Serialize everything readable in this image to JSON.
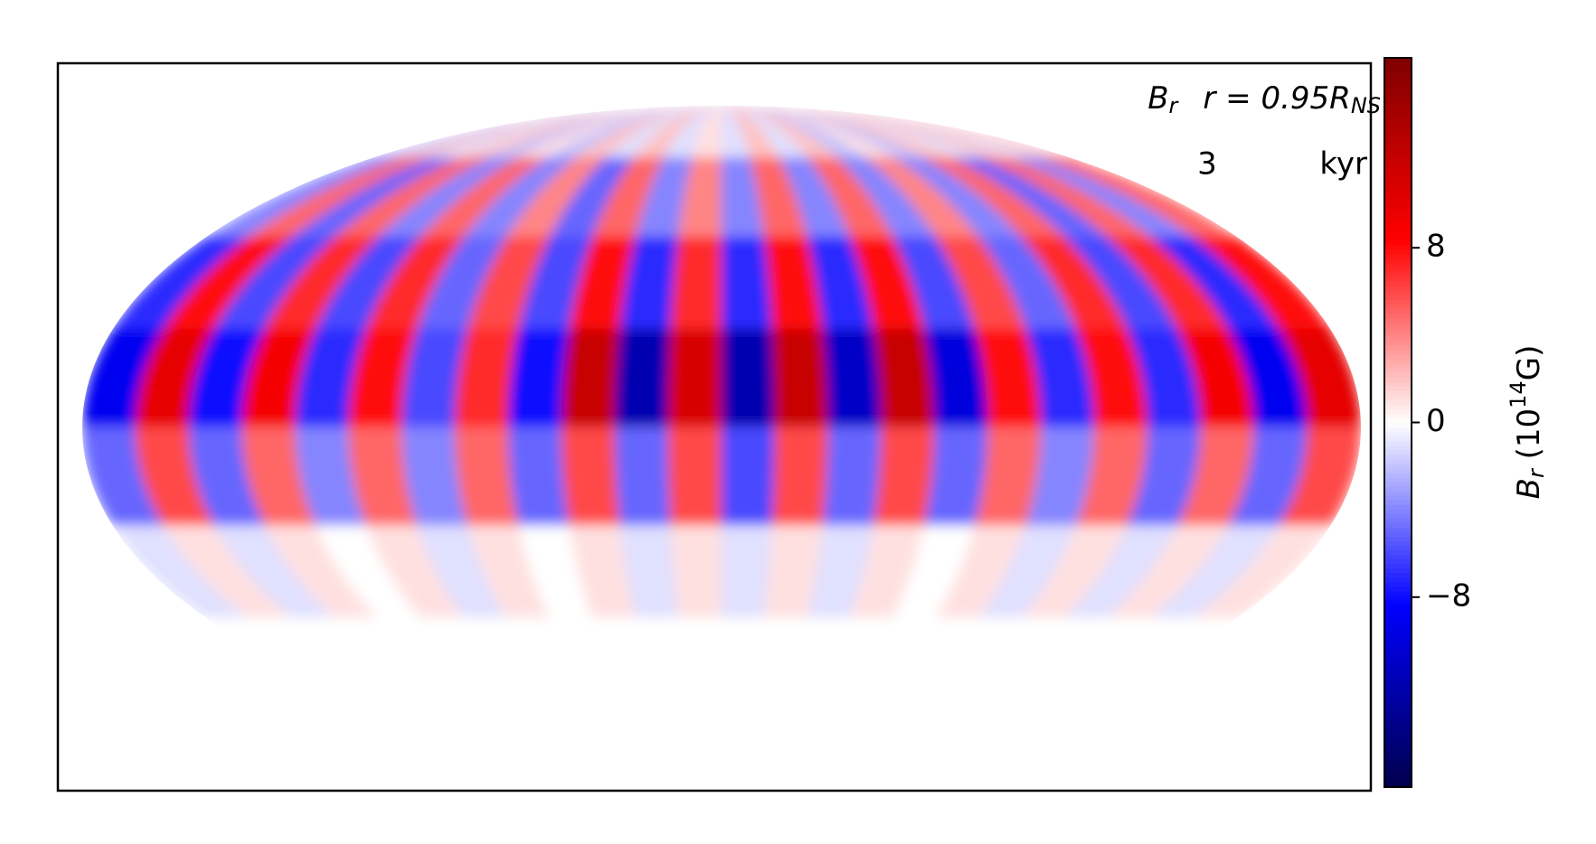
{
  "chart_data": {
    "type": "mollweide",
    "annotation_field": {
      "text": "B",
      "sub": "r"
    },
    "annotation_radius": {
      "text": "r = 0.95R",
      "sub": "NS"
    },
    "time": "3",
    "time_unit": "kyr",
    "colorbar_label": {
      "text": "B",
      "sub": "r",
      "rest": " (10",
      "sup": "14",
      "unit": "G)"
    },
    "colormap": "seismic",
    "clim": [
      -16.7,
      16.7
    ],
    "cticks": [
      {
        "value": -8,
        "label": "−8"
      },
      0,
      8
    ],
    "lat_edges": [
      90,
      67.5,
      45,
      22.5,
      0,
      -22.5,
      -45,
      -67.5,
      -90
    ],
    "lon_edges": [
      -180,
      -165,
      -150,
      -135,
      -120,
      -105,
      -90,
      -75,
      -60,
      -45,
      -30,
      -15,
      0,
      15,
      30,
      45,
      60,
      75,
      90,
      105,
      120,
      135,
      150,
      165,
      180
    ],
    "z": [
      [
        -2,
        2,
        -1,
        2,
        -2,
        1,
        -2,
        2,
        -1,
        2,
        -1,
        1,
        -1,
        2,
        -1,
        2,
        -2,
        1,
        -2,
        2,
        -1,
        2,
        -1,
        2
      ],
      [
        -4,
        5,
        -5,
        5,
        -4,
        5,
        -4,
        4,
        -5,
        5,
        -4,
        4,
        -4,
        5,
        -4,
        5,
        -4,
        4,
        -4,
        5,
        -5,
        5,
        -4,
        5
      ],
      [
        -7,
        8,
        -6,
        7,
        -6,
        7,
        -5,
        6,
        -6,
        8,
        -7,
        7,
        -7,
        8,
        -7,
        8,
        -6,
        6,
        -5,
        7,
        -6,
        7,
        -7,
        8
      ],
      [
        -9,
        10,
        -8,
        9,
        -7,
        8,
        -6,
        7,
        -8,
        12,
        -12,
        11,
        -12,
        12,
        -11,
        12,
        -10,
        8,
        -7,
        8,
        -7,
        9,
        -9,
        10
      ],
      [
        -5,
        6,
        -5,
        5,
        -4,
        5,
        -4,
        5,
        -5,
        6,
        -5,
        6,
        -6,
        6,
        -5,
        6,
        -5,
        5,
        -4,
        5,
        -5,
        5,
        -5,
        6
      ],
      [
        -1,
        1,
        -1,
        1,
        0,
        1,
        -1,
        1,
        0,
        1,
        -1,
        1,
        -1,
        1,
        -1,
        1,
        0,
        1,
        -1,
        1,
        -1,
        1,
        -1,
        1
      ],
      [
        0,
        0,
        0,
        0,
        0,
        0,
        0,
        0,
        0,
        0,
        0,
        0,
        0,
        0,
        0,
        0,
        0,
        0,
        0,
        0,
        0,
        0,
        0,
        0
      ],
      [
        0,
        0,
        0,
        0,
        0,
        0,
        0,
        0,
        0,
        0,
        0,
        0,
        0,
        0,
        0,
        0,
        0,
        0,
        0,
        0,
        0,
        0,
        0,
        0
      ]
    ]
  }
}
